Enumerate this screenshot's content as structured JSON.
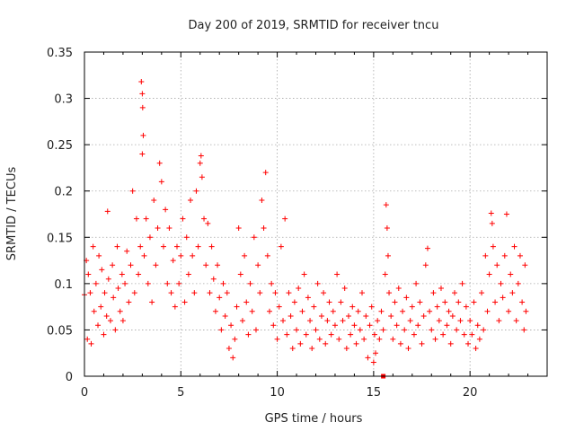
{
  "chart_data": {
    "type": "scatter",
    "title": "Day 200 of 2019, SRMTID for receiver tncu",
    "xlabel": "GPS time / hours",
    "ylabel": "SRMTID / TECUs",
    "xlim": [
      0,
      24
    ],
    "ylim": [
      0,
      0.35
    ],
    "xticks": [
      0,
      5,
      10,
      15,
      20
    ],
    "xtick_labels": [
      "0",
      "5",
      "10",
      "15",
      "20"
    ],
    "yticks": [
      0,
      0.05,
      0.1,
      0.15,
      0.2,
      0.25,
      0.3,
      0.35
    ],
    "ytick_labels": [
      "0",
      "0.05",
      "0.1",
      "0.15",
      "0.2",
      "0.25",
      "0.3",
      "0.35"
    ],
    "grid": true,
    "marker": "plus",
    "color": "#ff0000",
    "series": [
      {
        "name": "SRMTID",
        "points": [
          [
            0.0,
            0.088
          ],
          [
            0.1,
            0.125
          ],
          [
            0.15,
            0.04
          ],
          [
            0.2,
            0.11
          ],
          [
            0.3,
            0.09
          ],
          [
            0.35,
            0.035
          ],
          [
            0.45,
            0.14
          ],
          [
            0.5,
            0.07
          ],
          [
            0.6,
            0.1
          ],
          [
            0.7,
            0.055
          ],
          [
            0.75,
            0.13
          ],
          [
            0.85,
            0.075
          ],
          [
            0.9,
            0.115
          ],
          [
            1.0,
            0.045
          ],
          [
            1.05,
            0.09
          ],
          [
            1.15,
            0.065
          ],
          [
            1.2,
            0.178
          ],
          [
            1.25,
            0.105
          ],
          [
            1.35,
            0.06
          ],
          [
            1.45,
            0.12
          ],
          [
            1.5,
            0.085
          ],
          [
            1.6,
            0.05
          ],
          [
            1.7,
            0.14
          ],
          [
            1.75,
            0.095
          ],
          [
            1.85,
            0.07
          ],
          [
            1.95,
            0.11
          ],
          [
            2.0,
            0.06
          ],
          [
            2.1,
            0.1
          ],
          [
            2.2,
            0.135
          ],
          [
            2.3,
            0.08
          ],
          [
            2.4,
            0.12
          ],
          [
            2.5,
            0.2
          ],
          [
            2.6,
            0.09
          ],
          [
            2.7,
            0.17
          ],
          [
            2.8,
            0.11
          ],
          [
            2.9,
            0.14
          ],
          [
            2.95,
            0.318
          ],
          [
            3.0,
            0.305
          ],
          [
            3.02,
            0.29
          ],
          [
            3.05,
            0.26
          ],
          [
            3.0,
            0.24
          ],
          [
            3.1,
            0.13
          ],
          [
            3.2,
            0.17
          ],
          [
            3.3,
            0.1
          ],
          [
            3.4,
            0.15
          ],
          [
            3.5,
            0.08
          ],
          [
            3.6,
            0.19
          ],
          [
            3.7,
            0.12
          ],
          [
            3.8,
            0.16
          ],
          [
            3.9,
            0.23
          ],
          [
            4.0,
            0.21
          ],
          [
            4.1,
            0.14
          ],
          [
            4.2,
            0.18
          ],
          [
            4.3,
            0.1
          ],
          [
            4.4,
            0.16
          ],
          [
            4.5,
            0.09
          ],
          [
            4.6,
            0.125
          ],
          [
            4.7,
            0.075
          ],
          [
            4.8,
            0.14
          ],
          [
            4.9,
            0.1
          ],
          [
            5.0,
            0.13
          ],
          [
            5.1,
            0.17
          ],
          [
            5.2,
            0.08
          ],
          [
            5.3,
            0.15
          ],
          [
            5.4,
            0.11
          ],
          [
            5.5,
            0.19
          ],
          [
            5.6,
            0.13
          ],
          [
            5.7,
            0.09
          ],
          [
            5.8,
            0.2
          ],
          [
            5.9,
            0.14
          ],
          [
            6.0,
            0.23
          ],
          [
            6.05,
            0.238
          ],
          [
            6.1,
            0.215
          ],
          [
            6.2,
            0.17
          ],
          [
            6.3,
            0.12
          ],
          [
            6.4,
            0.165
          ],
          [
            6.5,
            0.09
          ],
          [
            6.6,
            0.14
          ],
          [
            6.7,
            0.105
          ],
          [
            6.8,
            0.07
          ],
          [
            6.9,
            0.12
          ],
          [
            7.0,
            0.085
          ],
          [
            7.1,
            0.05
          ],
          [
            7.2,
            0.1
          ],
          [
            7.3,
            0.065
          ],
          [
            7.4,
            0.09
          ],
          [
            7.5,
            0.03
          ],
          [
            7.6,
            0.055
          ],
          [
            7.7,
            0.02
          ],
          [
            7.8,
            0.04
          ],
          [
            7.9,
            0.075
          ],
          [
            8.0,
            0.16
          ],
          [
            8.1,
            0.11
          ],
          [
            8.2,
            0.06
          ],
          [
            8.3,
            0.13
          ],
          [
            8.4,
            0.08
          ],
          [
            8.5,
            0.045
          ],
          [
            8.6,
            0.1
          ],
          [
            8.7,
            0.07
          ],
          [
            8.8,
            0.15
          ],
          [
            8.9,
            0.05
          ],
          [
            9.0,
            0.12
          ],
          [
            9.1,
            0.09
          ],
          [
            9.2,
            0.19
          ],
          [
            9.3,
            0.16
          ],
          [
            9.4,
            0.22
          ],
          [
            9.5,
            0.13
          ],
          [
            9.6,
            0.07
          ],
          [
            9.7,
            0.1
          ],
          [
            9.8,
            0.055
          ],
          [
            9.9,
            0.09
          ],
          [
            10.0,
            0.04
          ],
          [
            10.1,
            0.075
          ],
          [
            10.2,
            0.14
          ],
          [
            10.3,
            0.06
          ],
          [
            10.4,
            0.17
          ],
          [
            10.5,
            0.045
          ],
          [
            10.6,
            0.09
          ],
          [
            10.7,
            0.065
          ],
          [
            10.8,
            0.03
          ],
          [
            10.9,
            0.08
          ],
          [
            11.0,
            0.05
          ],
          [
            11.1,
            0.095
          ],
          [
            11.2,
            0.035
          ],
          [
            11.3,
            0.07
          ],
          [
            11.4,
            0.11
          ],
          [
            11.5,
            0.045
          ],
          [
            11.6,
            0.085
          ],
          [
            11.7,
            0.06
          ],
          [
            11.8,
            0.03
          ],
          [
            11.9,
            0.075
          ],
          [
            12.0,
            0.05
          ],
          [
            12.1,
            0.1
          ],
          [
            12.2,
            0.04
          ],
          [
            12.3,
            0.065
          ],
          [
            12.4,
            0.09
          ],
          [
            12.5,
            0.035
          ],
          [
            12.6,
            0.06
          ],
          [
            12.7,
            0.08
          ],
          [
            12.8,
            0.045
          ],
          [
            12.9,
            0.07
          ],
          [
            13.0,
            0.055
          ],
          [
            13.1,
            0.11
          ],
          [
            13.2,
            0.04
          ],
          [
            13.3,
            0.08
          ],
          [
            13.4,
            0.06
          ],
          [
            13.5,
            0.095
          ],
          [
            13.6,
            0.03
          ],
          [
            13.7,
            0.065
          ],
          [
            13.8,
            0.045
          ],
          [
            13.9,
            0.075
          ],
          [
            14.0,
            0.055
          ],
          [
            14.1,
            0.035
          ],
          [
            14.2,
            0.07
          ],
          [
            14.3,
            0.05
          ],
          [
            14.4,
            0.09
          ],
          [
            14.5,
            0.04
          ],
          [
            14.6,
            0.065
          ],
          [
            14.7,
            0.02
          ],
          [
            14.8,
            0.055
          ],
          [
            14.9,
            0.075
          ],
          [
            15.0,
            0.015
          ],
          [
            15.05,
            0.045
          ],
          [
            15.1,
            0.025
          ],
          [
            15.2,
            0.06
          ],
          [
            15.3,
            0.04
          ],
          [
            15.4,
            0.07
          ],
          [
            15.5,
            0.05
          ],
          [
            15.6,
            0.11
          ],
          [
            15.65,
            0.185
          ],
          [
            15.7,
            0.16
          ],
          [
            15.75,
            0.13
          ],
          [
            15.8,
            0.09
          ],
          [
            15.9,
            0.065
          ],
          [
            16.0,
            0.04
          ],
          [
            16.1,
            0.08
          ],
          [
            16.2,
            0.055
          ],
          [
            16.3,
            0.095
          ],
          [
            16.4,
            0.035
          ],
          [
            16.5,
            0.07
          ],
          [
            16.6,
            0.05
          ],
          [
            16.7,
            0.085
          ],
          [
            16.8,
            0.03
          ],
          [
            16.9,
            0.06
          ],
          [
            17.0,
            0.075
          ],
          [
            17.1,
            0.045
          ],
          [
            17.2,
            0.1
          ],
          [
            17.3,
            0.055
          ],
          [
            17.4,
            0.08
          ],
          [
            17.5,
            0.035
          ],
          [
            17.6,
            0.065
          ],
          [
            17.7,
            0.12
          ],
          [
            17.8,
            0.138
          ],
          [
            17.9,
            0.07
          ],
          [
            18.0,
            0.05
          ],
          [
            18.1,
            0.09
          ],
          [
            18.2,
            0.04
          ],
          [
            18.3,
            0.075
          ],
          [
            18.4,
            0.06
          ],
          [
            18.5,
            0.095
          ],
          [
            18.6,
            0.045
          ],
          [
            18.7,
            0.08
          ],
          [
            18.8,
            0.055
          ],
          [
            18.9,
            0.07
          ],
          [
            19.0,
            0.035
          ],
          [
            19.1,
            0.065
          ],
          [
            19.2,
            0.09
          ],
          [
            19.3,
            0.05
          ],
          [
            19.4,
            0.08
          ],
          [
            19.5,
            0.06
          ],
          [
            19.6,
            0.1
          ],
          [
            19.7,
            0.045
          ],
          [
            19.8,
            0.075
          ],
          [
            19.9,
            0.035
          ],
          [
            20.0,
            0.06
          ],
          [
            20.1,
            0.045
          ],
          [
            20.2,
            0.08
          ],
          [
            20.3,
            0.03
          ],
          [
            20.4,
            0.055
          ],
          [
            20.5,
            0.04
          ],
          [
            20.6,
            0.09
          ],
          [
            20.7,
            0.05
          ],
          [
            20.8,
            0.13
          ],
          [
            20.9,
            0.07
          ],
          [
            21.0,
            0.11
          ],
          [
            21.1,
            0.176
          ],
          [
            21.15,
            0.165
          ],
          [
            21.2,
            0.14
          ],
          [
            21.3,
            0.08
          ],
          [
            21.4,
            0.12
          ],
          [
            21.5,
            0.06
          ],
          [
            21.6,
            0.1
          ],
          [
            21.7,
            0.085
          ],
          [
            21.8,
            0.13
          ],
          [
            21.9,
            0.175
          ],
          [
            22.0,
            0.07
          ],
          [
            22.1,
            0.11
          ],
          [
            22.2,
            0.09
          ],
          [
            22.3,
            0.14
          ],
          [
            22.4,
            0.06
          ],
          [
            22.5,
            0.1
          ],
          [
            22.6,
            0.13
          ],
          [
            22.7,
            0.08
          ],
          [
            22.8,
            0.05
          ],
          [
            22.85,
            0.12
          ],
          [
            22.9,
            0.07
          ]
        ]
      },
      {
        "name": "marker",
        "style": "square",
        "points": [
          [
            15.5,
            0.0
          ]
        ]
      }
    ]
  }
}
